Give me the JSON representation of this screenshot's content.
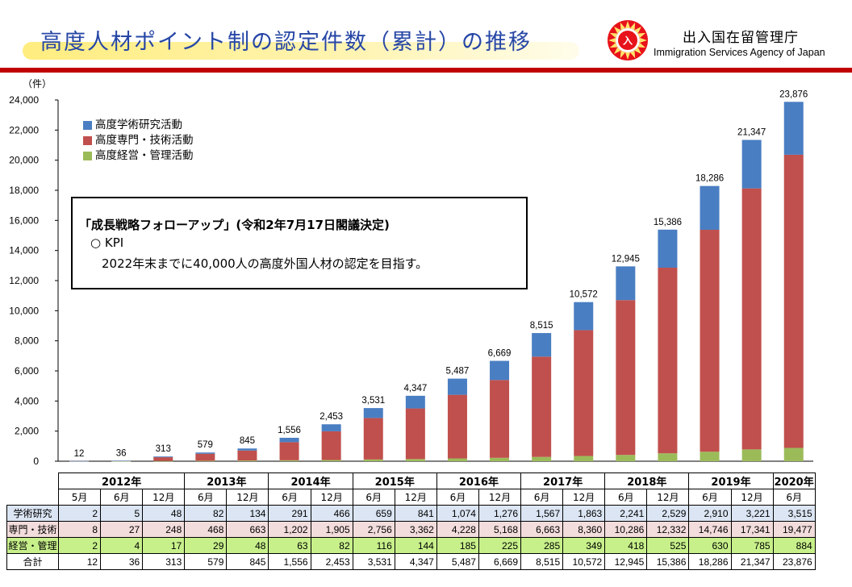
{
  "header": {
    "title": "高度人材ポイント制の認定件数（累計）の推移",
    "agency_jp": "出入国在留管理庁",
    "agency_en": "Immigration Services Agency of Japan",
    "logo_icon": "immigration-agency-emblem"
  },
  "colors": {
    "academic": "#4a7ec2",
    "professional": "#c0504d",
    "management": "#9bbb59",
    "title": "#2747a6",
    "header_line": "#c00000"
  },
  "kpi_box": {
    "heading": "「成長戦略フォローアップ」(令和2年7月17日閣議決定)",
    "label": "○ KPI",
    "text": "2022年末までに40,000人の高度外国人材の認定を目指す。"
  },
  "chart_data": {
    "type": "bar",
    "stacked": true,
    "ylabel": "（件）",
    "ylim": [
      0,
      24000
    ],
    "yticks": [
      "0",
      "2,000",
      "4,000",
      "6,000",
      "8,000",
      "10,000",
      "12,000",
      "14,000",
      "16,000",
      "18,000",
      "20,000",
      "22,000",
      "24,000"
    ],
    "grid": false,
    "legend_position": "top-left",
    "categories": [
      "2012年5月",
      "2012年6月",
      "2012年12月",
      "2013年6月",
      "2013年12月",
      "2014年6月",
      "2014年12月",
      "2015年6月",
      "2015年12月",
      "2016年6月",
      "2016年12月",
      "2017年6月",
      "2017年12月",
      "2018年6月",
      "2018年12月",
      "2019年6月",
      "2019年12月",
      "2020年6月"
    ],
    "series": [
      {
        "name": "高度経営・管理活動",
        "values": [
          2,
          4,
          17,
          29,
          48,
          63,
          82,
          116,
          144,
          185,
          225,
          285,
          349,
          418,
          525,
          630,
          785,
          884
        ]
      },
      {
        "name": "高度専門・技術活動",
        "values": [
          8,
          27,
          248,
          468,
          663,
          1202,
          1905,
          2756,
          3362,
          4228,
          5168,
          6663,
          8360,
          10286,
          12332,
          14746,
          17341,
          19477
        ]
      },
      {
        "name": "高度学術研究活動",
        "values": [
          2,
          5,
          48,
          82,
          134,
          291,
          466,
          659,
          841,
          1074,
          1276,
          1567,
          1863,
          2241,
          2529,
          2910,
          3221,
          3515
        ]
      }
    ],
    "totals": [
      12,
      36,
      313,
      579,
      845,
      1556,
      2453,
      3531,
      4347,
      5487,
      6669,
      8515,
      10572,
      12945,
      15386,
      18286,
      21347,
      23876
    ],
    "total_labels": [
      "12",
      "36",
      "313",
      "579",
      "845",
      "1,556",
      "2,453",
      "3,531",
      "4,347",
      "5,487",
      "6,669",
      "8,515",
      "10,572",
      "12,945",
      "15,386",
      "18,286",
      "21,347",
      "23,876"
    ],
    "legend": [
      "高度学術研究活動",
      "高度専門・技術活動",
      "高度経営・管理活動"
    ]
  },
  "table": {
    "years": [
      {
        "label": "2012年",
        "span": 3
      },
      {
        "label": "2013年",
        "span": 2
      },
      {
        "label": "2014年",
        "span": 2
      },
      {
        "label": "2015年",
        "span": 2
      },
      {
        "label": "2016年",
        "span": 2
      },
      {
        "label": "2017年",
        "span": 2
      },
      {
        "label": "2018年",
        "span": 2
      },
      {
        "label": "2019年",
        "span": 2
      },
      {
        "label": "2020年",
        "span": 1
      }
    ],
    "months": [
      "5月",
      "6月",
      "12月",
      "6月",
      "12月",
      "6月",
      "12月",
      "6月",
      "12月",
      "6月",
      "12月",
      "6月",
      "12月",
      "6月",
      "12月",
      "6月",
      "12月",
      "6月"
    ],
    "rows": [
      {
        "label": "学術研究",
        "cls": "r-ac",
        "values": [
          "2",
          "5",
          "48",
          "82",
          "134",
          "291",
          "466",
          "659",
          "841",
          "1,074",
          "1,276",
          "1,567",
          "1,863",
          "2,241",
          "2,529",
          "2,910",
          "3,221",
          "3,515"
        ]
      },
      {
        "label": "専門・技術",
        "cls": "r-pr",
        "values": [
          "8",
          "27",
          "248",
          "468",
          "663",
          "1,202",
          "1,905",
          "2,756",
          "3,362",
          "4,228",
          "5,168",
          "6,663",
          "8,360",
          "10,286",
          "12,332",
          "14,746",
          "17,341",
          "19,477"
        ]
      },
      {
        "label": "経営・管理",
        "cls": "r-mg",
        "values": [
          "2",
          "4",
          "17",
          "29",
          "48",
          "63",
          "82",
          "116",
          "144",
          "185",
          "225",
          "285",
          "349",
          "418",
          "525",
          "630",
          "785",
          "884"
        ]
      },
      {
        "label": "合計",
        "cls": "r-tot",
        "values": [
          "12",
          "36",
          "313",
          "579",
          "845",
          "1,556",
          "2,453",
          "3,531",
          "4,347",
          "5,487",
          "6,669",
          "8,515",
          "10,572",
          "12,945",
          "15,386",
          "18,286",
          "21,347",
          "23,876"
        ]
      }
    ]
  }
}
